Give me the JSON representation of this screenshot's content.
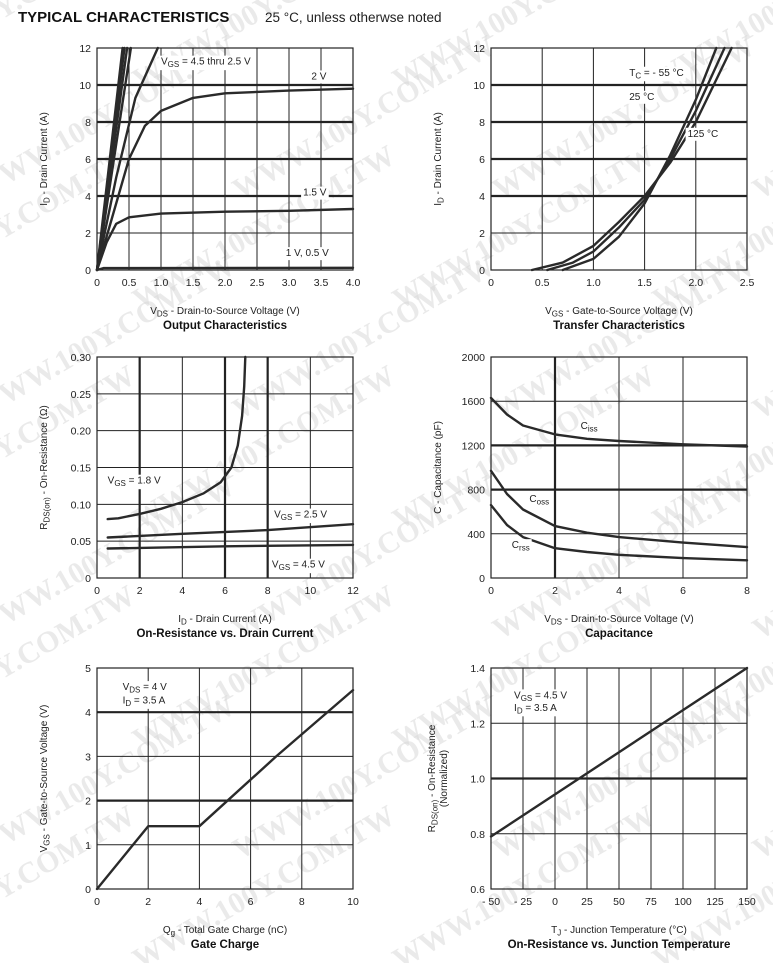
{
  "header": {
    "title": "TYPICAL CHARACTERISTICS",
    "subtitle": "25 °C, unless otherwse noted"
  },
  "watermark": "WWW.100Y.COM.TW",
  "chart_data": [
    {
      "type": "line",
      "title": "Output Characteristics",
      "xlabel": [
        {
          "t": "V"
        },
        {
          "t": "DS",
          "sub": true
        },
        {
          "t": " - Drain-to-Source Voltage (V)"
        }
      ],
      "ylabel": [
        [
          {
            "t": "I"
          },
          {
            "t": "D",
            "sub": true
          },
          {
            "t": " - Drain Current (A)"
          }
        ]
      ],
      "xlim": [
        0,
        4
      ],
      "ylim": [
        0,
        12
      ],
      "xticks": [
        0,
        0.5,
        1,
        1.5,
        2,
        2.5,
        3,
        3.5,
        4
      ],
      "xtick_labels": [
        "0",
        "0.5",
        "1.0",
        "1.5",
        "2.0",
        "2.5",
        "3.0",
        "3.5",
        "4.0"
      ],
      "yticks": [
        0,
        2,
        4,
        6,
        8,
        10,
        12
      ],
      "ytick_labels": [
        "0",
        "2",
        "4",
        "6",
        "8",
        "10",
        "12"
      ],
      "grid": true,
      "thick_x": [],
      "thick_y": [
        4,
        6,
        8,
        10
      ],
      "series": [
        {
          "name": "VGS = 4.5 V",
          "x": [
            0,
            0.4
          ],
          "y": [
            0,
            12
          ]
        },
        {
          "name": "VGS = 4 V",
          "x": [
            0,
            0.43
          ],
          "y": [
            0,
            12
          ]
        },
        {
          "name": "VGS = 3.5 V",
          "x": [
            0,
            0.47
          ],
          "y": [
            0,
            12
          ]
        },
        {
          "name": "VGS = 3 V",
          "x": [
            0,
            0.53
          ],
          "y": [
            0,
            12
          ]
        },
        {
          "name": "VGS = 2.5 V",
          "x": [
            0,
            0.3,
            0.6,
            0.95
          ],
          "y": [
            0,
            5,
            9.3,
            12
          ]
        },
        {
          "name": "VGS = 2 V",
          "x": [
            0,
            0.25,
            0.5,
            0.75,
            1,
            1.5,
            2,
            3,
            4
          ],
          "y": [
            0,
            3,
            6,
            7.8,
            8.6,
            9.3,
            9.55,
            9.7,
            9.8
          ]
        },
        {
          "name": "VGS = 1.5 V",
          "x": [
            0,
            0.15,
            0.3,
            0.5,
            1,
            2,
            3,
            4
          ],
          "y": [
            0,
            1.5,
            2.5,
            2.85,
            3.05,
            3.15,
            3.2,
            3.3
          ]
        },
        {
          "name": "VGS = 1 V, 0.5 V",
          "x": [
            0,
            0.1,
            4
          ],
          "y": [
            0,
            0.1,
            0.12
          ]
        }
      ],
      "annotations": [
        {
          "at": [
            1.0,
            11.1
          ],
          "parts": [
            {
              "t": "V"
            },
            {
              "t": "GS",
              "sub": true
            },
            {
              "t": " = 4.5 thru 2.5 V"
            }
          ]
        },
        {
          "at": [
            3.35,
            10.3
          ],
          "parts": [
            {
              "t": "2 V"
            }
          ]
        },
        {
          "at": [
            3.22,
            4.02
          ],
          "parts": [
            {
              "t": "1.5 V"
            }
          ]
        },
        {
          "at": [
            2.95,
            0.75
          ],
          "parts": [
            {
              "t": "1 V, 0.5 V"
            }
          ]
        }
      ]
    },
    {
      "type": "line",
      "title": "Transfer Characteristics",
      "xlabel": [
        {
          "t": "V"
        },
        {
          "t": "GS",
          "sub": true
        },
        {
          "t": " - Gate-to-Source Voltage (V)"
        }
      ],
      "ylabel": [
        [
          {
            "t": "I"
          },
          {
            "t": "D",
            "sub": true
          },
          {
            "t": " - Drain Current (A)"
          }
        ]
      ],
      "xlim": [
        0,
        2.5
      ],
      "ylim": [
        0,
        12
      ],
      "xticks": [
        0,
        0.5,
        1,
        1.5,
        2,
        2.5
      ],
      "xtick_labels": [
        "0",
        "0.5",
        "1.0",
        "1.5",
        "2.0",
        "2.5"
      ],
      "yticks": [
        0,
        2,
        4,
        6,
        8,
        10,
        12
      ],
      "ytick_labels": [
        "0",
        "2",
        "4",
        "6",
        "8",
        "10",
        "12"
      ],
      "grid": true,
      "thick_x": [],
      "thick_y": [
        4,
        6,
        8,
        10
      ],
      "series": [
        {
          "name": "TC = -55 °C",
          "x": [
            0.7,
            1,
            1.25,
            1.5,
            1.75,
            2,
            2.2
          ],
          "y": [
            0,
            0.6,
            1.8,
            3.6,
            6.2,
            9.2,
            12
          ]
        },
        {
          "name": "TC = 25 °C",
          "x": [
            0.55,
            0.8,
            1,
            1.25,
            1.5,
            1.75,
            2,
            2.28
          ],
          "y": [
            0,
            0.4,
            1,
            2.3,
            3.8,
            6,
            8.6,
            12
          ]
        },
        {
          "name": "TC = 125 °C",
          "x": [
            0.4,
            0.7,
            1,
            1.25,
            1.5,
            1.75,
            2,
            2.35
          ],
          "y": [
            0,
            0.4,
            1.3,
            2.6,
            4,
            5.8,
            8,
            12
          ]
        }
      ],
      "annotations": [
        {
          "at": [
            1.35,
            10.5
          ],
          "parts": [
            {
              "t": "T"
            },
            {
              "t": "C",
              "sub": true
            },
            {
              "t": " = - 55 °C"
            }
          ]
        },
        {
          "at": [
            1.35,
            9.2
          ],
          "parts": [
            {
              "t": "25 °C"
            }
          ]
        },
        {
          "at": [
            1.92,
            7.2
          ],
          "parts": [
            {
              "t": "125 °C"
            }
          ]
        }
      ]
    },
    {
      "type": "line",
      "title": "On-Resistance vs. Drain Current",
      "xlabel": [
        {
          "t": "I"
        },
        {
          "t": "D",
          "sub": true
        },
        {
          "t": " - Drain Current (A)"
        }
      ],
      "ylabel": [
        [
          {
            "t": "R"
          },
          {
            "t": "DS(on)",
            "sub": true
          },
          {
            "t": " - On-Resistance (Ω)"
          }
        ]
      ],
      "xlim": [
        0,
        12
      ],
      "ylim": [
        0,
        0.3
      ],
      "xticks": [
        0,
        2,
        4,
        6,
        8,
        10,
        12
      ],
      "xtick_labels": [
        "0",
        "2",
        "4",
        "6",
        "8",
        "10",
        "12"
      ],
      "yticks": [
        0,
        0.05,
        0.1,
        0.15,
        0.2,
        0.25,
        0.3
      ],
      "ytick_labels": [
        "0",
        "0.05",
        "0.10",
        "0.15",
        "0.20",
        "0.25",
        "0.30"
      ],
      "grid": true,
      "thick_x": [
        2,
        6,
        8
      ],
      "thick_y": [],
      "series": [
        {
          "name": "VGS = 1.8 V",
          "x": [
            0.5,
            1,
            2,
            3,
            4,
            5,
            5.8,
            6.3,
            6.6,
            6.8,
            6.9,
            6.95
          ],
          "y": [
            0.08,
            0.081,
            0.087,
            0.094,
            0.103,
            0.115,
            0.13,
            0.15,
            0.18,
            0.22,
            0.26,
            0.3
          ]
        },
        {
          "name": "VGS = 2.5 V",
          "x": [
            0.5,
            4,
            8,
            12
          ],
          "y": [
            0.055,
            0.06,
            0.065,
            0.073
          ]
        },
        {
          "name": "VGS = 4.5 V",
          "x": [
            0.5,
            6,
            12
          ],
          "y": [
            0.04,
            0.043,
            0.045
          ]
        }
      ],
      "annotations": [
        {
          "at": [
            0.5,
            0.128
          ],
          "parts": [
            {
              "t": "V"
            },
            {
              "t": "GS",
              "sub": true
            },
            {
              "t": " = 1.8 V"
            }
          ]
        },
        {
          "at": [
            8.3,
            0.082
          ],
          "parts": [
            {
              "t": "V"
            },
            {
              "t": "GS",
              "sub": true
            },
            {
              "t": " = 2.5 V"
            }
          ]
        },
        {
          "at": [
            8.2,
            0.014
          ],
          "parts": [
            {
              "t": "V"
            },
            {
              "t": "GS",
              "sub": true
            },
            {
              "t": " = 4.5 V"
            }
          ]
        }
      ]
    },
    {
      "type": "line",
      "title": "Capacitance",
      "xlabel": [
        {
          "t": "V"
        },
        {
          "t": "DS",
          "sub": true
        },
        {
          "t": " - Drain-to-Source Voltage (V)"
        }
      ],
      "ylabel": [
        [
          {
            "t": "C - Capacitance (pF)"
          }
        ]
      ],
      "xlim": [
        0,
        8
      ],
      "ylim": [
        0,
        2000
      ],
      "xticks": [
        0,
        2,
        4,
        6,
        8
      ],
      "xtick_labels": [
        "0",
        "2",
        "4",
        "6",
        "8"
      ],
      "yticks": [
        0,
        400,
        800,
        1200,
        1600,
        2000
      ],
      "ytick_labels": [
        "0",
        "400",
        "800",
        "1200",
        "1600",
        "2000"
      ],
      "grid": true,
      "thick_x": [
        2
      ],
      "thick_y": [
        800,
        1200
      ],
      "series": [
        {
          "name": "Ciss",
          "x": [
            0,
            0.5,
            1,
            2,
            3,
            4,
            6,
            8
          ],
          "y": [
            1630,
            1480,
            1380,
            1300,
            1260,
            1240,
            1210,
            1190
          ]
        },
        {
          "name": "Coss",
          "x": [
            0,
            0.5,
            1,
            2,
            3,
            4,
            6,
            8
          ],
          "y": [
            970,
            760,
            620,
            470,
            410,
            370,
            320,
            280
          ]
        },
        {
          "name": "Crss",
          "x": [
            0,
            0.5,
            1,
            2,
            3,
            4,
            6,
            8
          ],
          "y": [
            660,
            480,
            370,
            270,
            235,
            210,
            180,
            160
          ]
        }
      ],
      "annotations": [
        {
          "at": [
            2.8,
            1350
          ],
          "parts": [
            {
              "t": "C"
            },
            {
              "t": "iss",
              "sub": true
            }
          ]
        },
        {
          "at": [
            1.2,
            690
          ],
          "parts": [
            {
              "t": "C"
            },
            {
              "t": "oss",
              "sub": true
            }
          ]
        },
        {
          "at": [
            0.65,
            270
          ],
          "parts": [
            {
              "t": "C"
            },
            {
              "t": "rss",
              "sub": true
            }
          ]
        }
      ]
    },
    {
      "type": "line",
      "title": "Gate Charge",
      "xlabel": [
        {
          "t": "Q"
        },
        {
          "t": "g",
          "sub": true
        },
        {
          "t": " - Total Gate Charge (nC)"
        }
      ],
      "ylabel": [
        [
          {
            "t": "V"
          },
          {
            "t": "GS",
            "sub": true
          },
          {
            "t": " - Gate-to-Source Voltage (V)"
          }
        ]
      ],
      "xlim": [
        0,
        10
      ],
      "ylim": [
        0,
        5
      ],
      "xticks": [
        0,
        2,
        4,
        6,
        8,
        10
      ],
      "xtick_labels": [
        "0",
        "2",
        "4",
        "6",
        "8",
        "10"
      ],
      "yticks": [
        0,
        1,
        2,
        3,
        4,
        5
      ],
      "ytick_labels": [
        "0",
        "1",
        "2",
        "3",
        "4",
        "5"
      ],
      "grid": true,
      "thick_x": [],
      "thick_y": [
        2,
        4
      ],
      "series": [
        {
          "name": "VGS",
          "x": [
            0,
            2,
            4,
            7,
            10
          ],
          "y": [
            0,
            1.42,
            1.42,
            3,
            4.5
          ]
        }
      ],
      "annotations": [
        {
          "at": [
            1.0,
            4.5
          ],
          "parts": [
            {
              "t": "V"
            },
            {
              "t": "DS",
              "sub": true
            },
            {
              "t": " = 4 V"
            }
          ]
        },
        {
          "at": [
            1.0,
            4.2
          ],
          "parts": [
            {
              "t": "I"
            },
            {
              "t": "D",
              "sub": true
            },
            {
              "t": " = 3.5 A"
            }
          ]
        }
      ]
    },
    {
      "type": "line",
      "title": "On-Resistance vs. Junction Temperature",
      "xlabel": [
        {
          "t": "T"
        },
        {
          "t": "J",
          "sub": true
        },
        {
          "t": " - Junction Temperature (°C)"
        }
      ],
      "ylabel": [
        [
          {
            "t": "R"
          },
          {
            "t": "DS(on)",
            "sub": true
          },
          {
            "t": " - On-Resistance"
          }
        ],
        [
          {
            "t": "(Normalized)"
          }
        ]
      ],
      "xlim": [
        -50,
        150
      ],
      "ylim": [
        0.6,
        1.4
      ],
      "xticks": [
        -50,
        -25,
        0,
        25,
        50,
        75,
        100,
        125,
        150
      ],
      "xtick_labels": [
        "- 50",
        "- 25",
        "0",
        "25",
        "50",
        "75",
        "100",
        "125",
        "150"
      ],
      "yticks": [
        0.6,
        0.8,
        1.0,
        1.2,
        1.4
      ],
      "ytick_labels": [
        "0.6",
        "0.8",
        "1.0",
        "1.2",
        "1.4"
      ],
      "grid": true,
      "thick_x": [],
      "thick_y": [
        1.0
      ],
      "series": [
        {
          "name": "RDS(on) normalized",
          "x": [
            -50,
            150
          ],
          "y": [
            0.79,
            1.4
          ]
        }
      ],
      "annotations": [
        {
          "at": [
            -32,
            1.29
          ],
          "parts": [
            {
              "t": "V"
            },
            {
              "t": "GS",
              "sub": true
            },
            {
              "t": " = 4.5 V"
            }
          ]
        },
        {
          "at": [
            -32,
            1.245
          ],
          "parts": [
            {
              "t": "I"
            },
            {
              "t": "D",
              "sub": true
            },
            {
              "t": " = 3.5 A"
            }
          ]
        }
      ]
    }
  ]
}
